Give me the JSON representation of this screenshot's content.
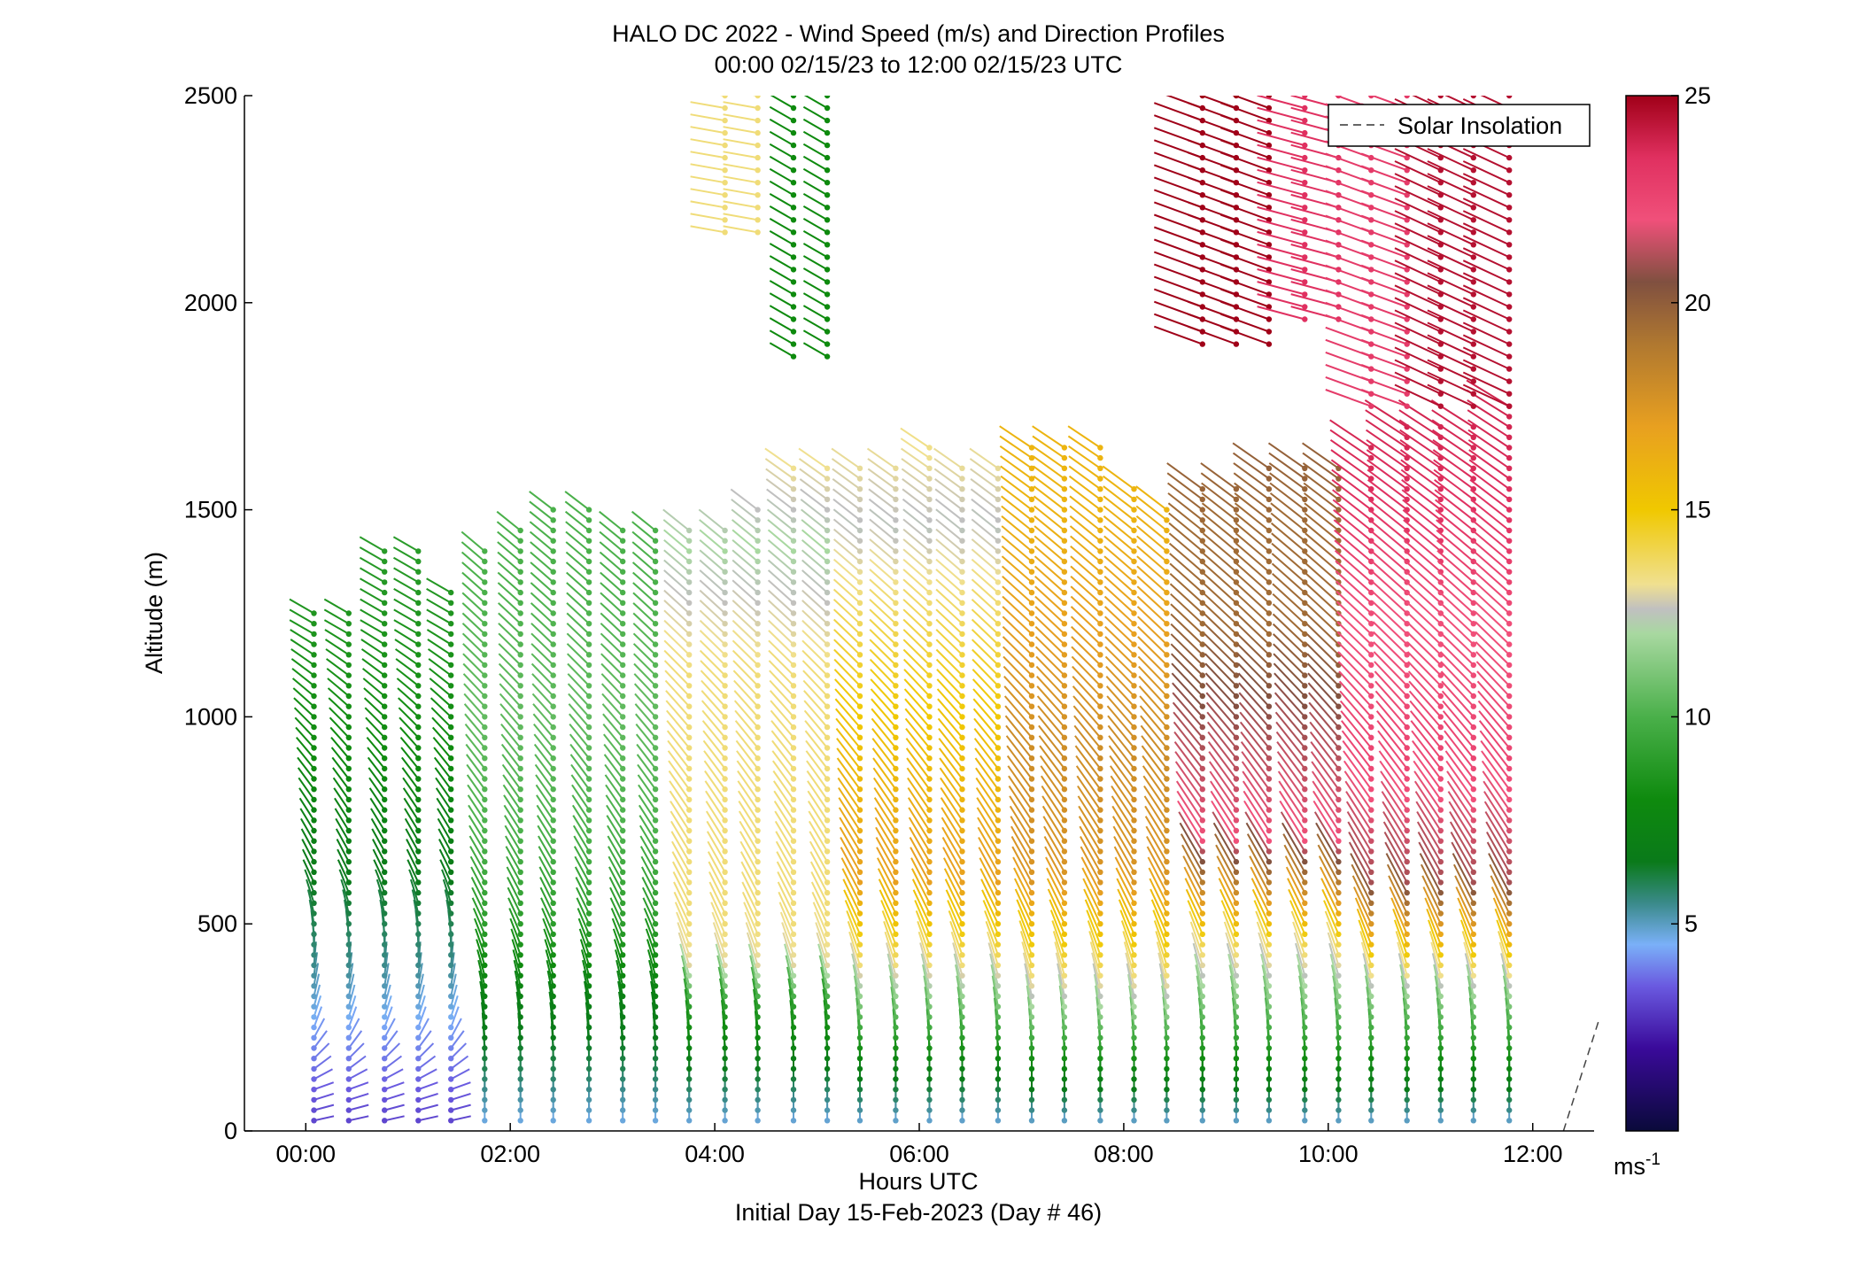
{
  "chart_data": {
    "type": "scatter",
    "subtype": "wind-barb profile",
    "title": "HALO DC 2022 - Wind Speed (m/s) and Direction Profiles",
    "subtitle": "00:00 02/15/23 to 12:00 02/15/23  UTC",
    "xlabel": "Hours UTC",
    "xlabel2": "Initial Day 15-Feb-2023 (Day # 46)",
    "ylabel": "Altitude (m)",
    "xlim": [
      -0.6,
      12.6
    ],
    "ylim": [
      0,
      2500
    ],
    "x_ticks": [
      0,
      2,
      4,
      6,
      8,
      10,
      12
    ],
    "x_tick_labels": [
      "00:00",
      "02:00",
      "04:00",
      "06:00",
      "08:00",
      "10:00",
      "12:00"
    ],
    "y_ticks": [
      0,
      500,
      1000,
      1500,
      2000,
      2500
    ],
    "y_tick_labels": [
      "0",
      "500",
      "1000",
      "1500",
      "2000",
      "2500"
    ],
    "legend": {
      "entries": [
        "Solar Insolation"
      ],
      "position": "top-right"
    },
    "colorbar": {
      "range": [
        0,
        25
      ],
      "ticks": [
        5,
        10,
        15,
        20,
        25
      ],
      "tick_labels": [
        "5",
        "10",
        "15",
        "20",
        "25"
      ],
      "unit_label": "ms-1",
      "stops": [
        {
          "v": 0,
          "c": "#0a0a3a"
        },
        {
          "v": 2,
          "c": "#3a0a9a"
        },
        {
          "v": 3.5,
          "c": "#6a5ae0"
        },
        {
          "v": 4.5,
          "c": "#7ab0f8"
        },
        {
          "v": 5.5,
          "c": "#3a8a8a"
        },
        {
          "v": 6.5,
          "c": "#0a7a1a"
        },
        {
          "v": 8,
          "c": "#0e8a0e"
        },
        {
          "v": 10,
          "c": "#4ab04a"
        },
        {
          "v": 12,
          "c": "#a8d8a0"
        },
        {
          "v": 12.6,
          "c": "#c0c0c0"
        },
        {
          "v": 13.2,
          "c": "#f0e090"
        },
        {
          "v": 15,
          "c": "#f0c800"
        },
        {
          "v": 17,
          "c": "#e8a020"
        },
        {
          "v": 19,
          "c": "#b07830"
        },
        {
          "v": 20.5,
          "c": "#805040"
        },
        {
          "v": 22,
          "c": "#f0507a"
        },
        {
          "v": 23.5,
          "c": "#e03060"
        },
        {
          "v": 25,
          "c": "#a00018"
        }
      ]
    },
    "profile_times_h": [
      0.08,
      0.42,
      0.77,
      1.1,
      1.42,
      1.75,
      2.1,
      2.42,
      2.77,
      3.1,
      3.42,
      3.75,
      4.1,
      4.42,
      4.77,
      5.1,
      5.42,
      5.77,
      6.1,
      6.42,
      6.77,
      7.1,
      7.42,
      7.77,
      8.1,
      8.42,
      8.77,
      9.1,
      9.42,
      9.77,
      10.1,
      10.42,
      10.77,
      11.1,
      11.42,
      11.77
    ],
    "profile_tops_m": [
      1250,
      1250,
      1400,
      1400,
      1300,
      1400,
      1450,
      1500,
      1500,
      1450,
      1450,
      1450,
      1450,
      1500,
      1600,
      1600,
      1600,
      1600,
      1650,
      1600,
      1600,
      1650,
      1650,
      1650,
      1550,
      1500,
      1550,
      1550,
      1600,
      1600,
      1600,
      1650,
      1700,
      1700,
      1700,
      1750
    ],
    "speed_profiles": [
      {
        "t_start": 0,
        "t_end": 1.5,
        "points": [
          [
            0,
            3
          ],
          [
            200,
            4
          ],
          [
            400,
            5.5
          ],
          [
            600,
            6.5
          ],
          [
            900,
            8
          ],
          [
            1200,
            8.5
          ],
          [
            1450,
            9
          ]
        ]
      },
      {
        "t_start": 1.5,
        "t_end": 3.6,
        "points": [
          [
            0,
            4.5
          ],
          [
            150,
            6
          ],
          [
            300,
            7
          ],
          [
            500,
            9
          ],
          [
            700,
            10
          ],
          [
            1000,
            10.5
          ],
          [
            1300,
            10
          ],
          [
            1500,
            10
          ]
        ]
      },
      {
        "t_start": 3.6,
        "t_end": 5.2,
        "points": [
          [
            0,
            4.5
          ],
          [
            150,
            6.5
          ],
          [
            300,
            9
          ],
          [
            400,
            13
          ],
          [
            500,
            13.5
          ],
          [
            800,
            13.5
          ],
          [
            1100,
            13.5
          ],
          [
            1400,
            12
          ],
          [
            1650,
            13.5
          ]
        ]
      },
      {
        "t_start": 5.2,
        "t_end": 6.9,
        "points": [
          [
            0,
            4.5
          ],
          [
            150,
            7
          ],
          [
            300,
            11
          ],
          [
            400,
            13.5
          ],
          [
            600,
            17
          ],
          [
            900,
            15.5
          ],
          [
            1200,
            14
          ],
          [
            1450,
            12.5
          ],
          [
            1700,
            13.5
          ]
        ]
      },
      {
        "t_start": 6.9,
        "t_end": 8.5,
        "points": [
          [
            0,
            4.5
          ],
          [
            150,
            7.5
          ],
          [
            300,
            12
          ],
          [
            400,
            14
          ],
          [
            600,
            17.5
          ],
          [
            900,
            18
          ],
          [
            1200,
            17
          ],
          [
            1500,
            16
          ],
          [
            1700,
            16
          ]
        ]
      },
      {
        "t_start": 8.5,
        "t_end": 10.3,
        "points": [
          [
            0,
            4.5
          ],
          [
            150,
            7.5
          ],
          [
            300,
            11
          ],
          [
            450,
            14
          ],
          [
            700,
            22
          ],
          [
            950,
            21
          ],
          [
            1200,
            19.5
          ],
          [
            1450,
            19.5
          ],
          [
            1650,
            20
          ]
        ]
      },
      {
        "t_start": 10.3,
        "t_end": 12.1,
        "points": [
          [
            0,
            4.5
          ],
          [
            150,
            7.5
          ],
          [
            300,
            11
          ],
          [
            400,
            14
          ],
          [
            600,
            21
          ],
          [
            900,
            22.5
          ],
          [
            1200,
            22
          ],
          [
            1500,
            23.5
          ],
          [
            1800,
            24
          ]
        ]
      }
    ],
    "direction_profiles": [
      {
        "t_start": 0,
        "t_end": 1.5,
        "points": [
          [
            0,
            100
          ],
          [
            100,
            110
          ],
          [
            250,
            160
          ],
          [
            400,
            175
          ],
          [
            600,
            205
          ],
          [
            900,
            220
          ],
          [
            1200,
            240
          ],
          [
            1450,
            240
          ]
        ]
      },
      {
        "t_start": 1.5,
        "t_end": 12.1,
        "points": [
          [
            0,
            180
          ],
          [
            150,
            180
          ],
          [
            300,
            190
          ],
          [
            500,
            205
          ],
          [
            800,
            215
          ],
          [
            1100,
            225
          ],
          [
            1400,
            230
          ],
          [
            1800,
            240
          ],
          [
            2500,
            245
          ]
        ]
      }
    ],
    "upper_segments": [
      {
        "t_start": 4.1,
        "t_end": 4.5,
        "alt_min": 2150,
        "alt_max": 2500,
        "speed": 13.5,
        "direction_deg": 260
      },
      {
        "t_start": 4.5,
        "t_end": 5.2,
        "alt_min": 1850,
        "alt_max": 2500,
        "speed": 8,
        "direction_deg": 240
      },
      {
        "t_start": 8.7,
        "t_end": 9.5,
        "alt_min": 1900,
        "alt_max": 2500,
        "speed": 25,
        "direction_deg": 250
      },
      {
        "t_start": 9.5,
        "t_end": 10.3,
        "alt_min": 1950,
        "alt_max": 2500,
        "speed": 23.5,
        "direction_deg": 255
      },
      {
        "t_start": 10.3,
        "t_end": 11.0,
        "alt_min": 1750,
        "alt_max": 2500,
        "speed": 23,
        "direction_deg": 250
      },
      {
        "t_start": 11.0,
        "t_end": 11.9,
        "alt_min": 1750,
        "alt_max": 2500,
        "speed": 24.5,
        "direction_deg": 245
      }
    ],
    "solar_insolation": {
      "x": [
        12.3,
        12.65
      ],
      "y": [
        0,
        270
      ]
    }
  }
}
